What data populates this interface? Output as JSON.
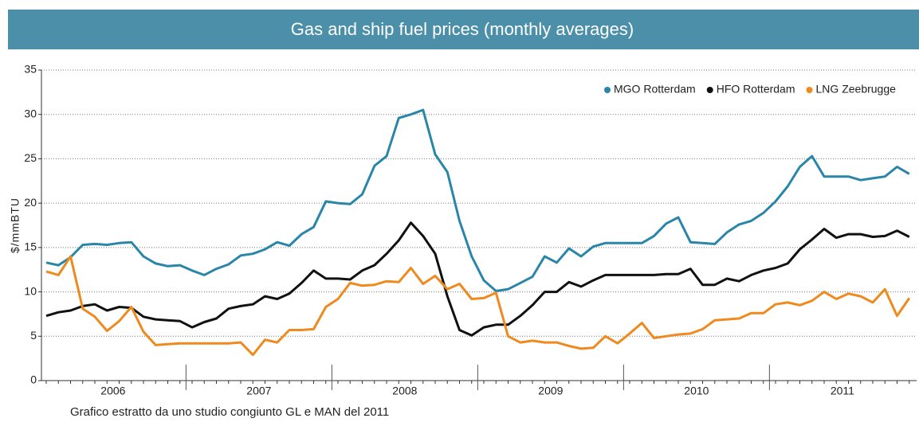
{
  "chart_data": {
    "type": "line",
    "title": "Gas and ship fuel prices (monthly averages)",
    "y_label": "$/mmBTU",
    "footnote": "Grafico estratto da uno studio congiunto GL e MAN del 2011",
    "categories": [
      null,
      null,
      null,
      null,
      null,
      null,
      "2006",
      null,
      null,
      null,
      null,
      null,
      null,
      null,
      null,
      null,
      null,
      null,
      "2007",
      null,
      null,
      null,
      null,
      null,
      null,
      null,
      null,
      null,
      null,
      null,
      "2008",
      null,
      null,
      null,
      null,
      null,
      null,
      null,
      null,
      null,
      null,
      null,
      "2009",
      null,
      null,
      null,
      null,
      null,
      null,
      null,
      null,
      null,
      null,
      null,
      "2010",
      null,
      null,
      null,
      null,
      null,
      null,
      null,
      null,
      null,
      null,
      null,
      "2011",
      null,
      null,
      null,
      null,
      null
    ],
    "series": [
      {
        "name": "MGO Rotterdam",
        "color": "#2a86a8",
        "values": [
          13.3,
          13.0,
          13.9,
          15.3,
          15.4,
          15.3,
          15.5,
          15.6,
          14.0,
          13.2,
          12.9,
          13.0,
          12.4,
          11.9,
          12.6,
          13.1,
          14.1,
          14.3,
          14.8,
          15.6,
          15.2,
          16.5,
          17.3,
          20.2,
          20.0,
          19.9,
          21.0,
          24.2,
          25.3,
          29.6,
          30.0,
          30.5,
          25.5,
          23.5,
          18.0,
          14.0,
          11.3,
          10.1,
          10.3,
          11.0,
          11.7,
          14.0,
          13.3,
          14.9,
          14.0,
          15.1,
          15.5,
          15.5,
          15.5,
          15.5,
          16.3,
          17.7,
          18.4,
          15.6,
          15.5,
          15.4,
          16.7,
          17.6,
          18.0,
          18.9,
          20.2,
          21.9,
          24.1,
          25.3,
          23.0,
          23.0,
          23.0,
          22.6,
          22.8,
          23.0,
          24.1,
          23.3
        ]
      },
      {
        "name": "HFO Rotterdam",
        "color": "#111111",
        "values": [
          7.3,
          7.7,
          7.9,
          8.4,
          8.6,
          7.9,
          8.3,
          8.2,
          7.2,
          6.9,
          6.8,
          6.7,
          6.0,
          6.6,
          7.0,
          8.1,
          8.4,
          8.6,
          9.5,
          9.2,
          9.8,
          11.0,
          12.4,
          11.5,
          11.5,
          11.4,
          12.4,
          13.0,
          14.3,
          15.8,
          17.8,
          16.3,
          14.3,
          9.5,
          5.7,
          5.1,
          6.0,
          6.3,
          6.3,
          7.3,
          8.5,
          10.0,
          10.0,
          11.1,
          10.6,
          11.3,
          11.9,
          11.9,
          11.9,
          11.9,
          11.9,
          12.0,
          12.0,
          12.6,
          10.8,
          10.8,
          11.5,
          11.2,
          11.9,
          12.4,
          12.7,
          13.2,
          14.8,
          15.9,
          17.1,
          16.1,
          16.5,
          16.5,
          16.2,
          16.3,
          16.9,
          16.2
        ]
      },
      {
        "name": "LNG Zeebrugge",
        "color": "#ee8a1e",
        "values": [
          12.3,
          11.9,
          14.0,
          8.1,
          7.2,
          5.6,
          6.7,
          8.3,
          5.5,
          4.0,
          4.1,
          4.2,
          4.2,
          4.2,
          4.2,
          4.2,
          4.3,
          2.9,
          4.6,
          4.3,
          5.7,
          5.7,
          5.8,
          8.3,
          9.2,
          11.0,
          10.7,
          10.8,
          11.2,
          11.1,
          12.7,
          10.9,
          11.8,
          10.3,
          10.9,
          9.2,
          9.3,
          9.9,
          5.0,
          4.3,
          4.5,
          4.3,
          4.3,
          3.9,
          3.6,
          3.7,
          5.0,
          4.2,
          5.3,
          6.5,
          4.8,
          5.0,
          5.2,
          5.3,
          5.8,
          6.8,
          6.9,
          7.0,
          7.6,
          7.6,
          8.6,
          8.8,
          8.5,
          9.0,
          10.0,
          9.2,
          9.8,
          9.5,
          8.8,
          10.3,
          7.3,
          9.3
        ]
      }
    ],
    "ylim": [
      0,
      35
    ],
    "yticks": [
      0,
      5,
      10,
      15,
      20,
      25,
      30,
      35
    ],
    "grid": true,
    "legend": "top-right"
  }
}
